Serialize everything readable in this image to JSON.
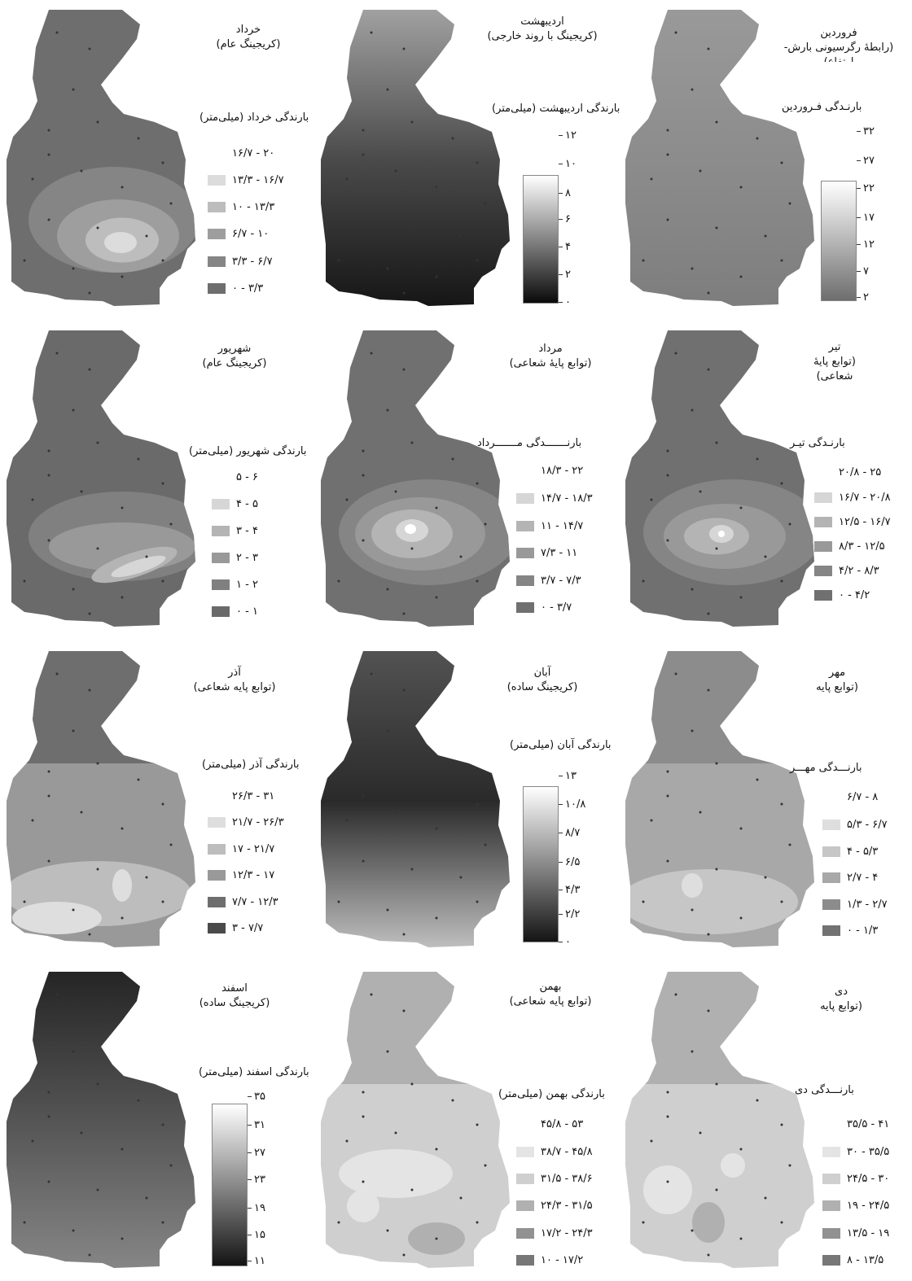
{
  "panels": [
    {
      "key": "khordad",
      "title": "خرداد\n(کریجینگ عام)",
      "legend_title": "بارندگی خرداد (میلی‌متر)",
      "kind": "classes",
      "classes": [
        {
          "label": "۱۶/۷ - ۲۰",
          "color": "none"
        },
        {
          "label": "۱۳/۳ - ۱۶/۷",
          "color": "#dcdcdc"
        },
        {
          "label": "۱۰ - ۱۳/۳",
          "color": "#bdbdbd"
        },
        {
          "label": "۶/۷ - ۱۰",
          "color": "#9e9e9e"
        },
        {
          "label": "۳/۳ - ۶/۷",
          "color": "#858585"
        },
        {
          "label": "۰ - ۳/۳",
          "color": "#6e6e6e"
        }
      ]
    },
    {
      "key": "ordibehesht",
      "title": "اردیبهشت\n(کریجینگ با روند خارجی)",
      "legend_title": "بارندگی اردیبهشت (میلی‌متر)",
      "kind": "ramp",
      "ticks": [
        "۱۲",
        "۱۰",
        "۸",
        "۶",
        "۴",
        "۲",
        "۰"
      ],
      "ramp_colors": [
        "#ffffff",
        "#0a0a0a"
      ]
    },
    {
      "key": "farvardin",
      "title": "فروردین\n(رابطهٔ رگرسیونی بارش-\nارتفاع)",
      "legend_title": "بارنـدگی فـروردین",
      "kind": "ramp",
      "ticks": [
        "۳۲",
        "۲۷",
        "۲۲",
        "۱۷",
        "۱۲",
        "۷",
        "۲"
      ],
      "ramp_colors": [
        "#ffffff",
        "#6e6e6e"
      ]
    },
    {
      "key": "shahrivar",
      "title": "شهریور\n(کریجینگ عام)",
      "legend_title": "بارندگی شهریور (میلی‌متر)",
      "kind": "classes",
      "classes": [
        {
          "label": "۵ - ۶",
          "color": "none"
        },
        {
          "label": "۴ - ۵",
          "color": "#d6d6d6"
        },
        {
          "label": "۳ - ۴",
          "color": "#b4b4b4"
        },
        {
          "label": "۲ - ۳",
          "color": "#999999"
        },
        {
          "label": "۱ - ۲",
          "color": "#808080"
        },
        {
          "label": "۰ - ۱",
          "color": "#6a6a6a"
        }
      ]
    },
    {
      "key": "mordad",
      "title": "مرداد\n(توابع پایهٔ شعاعی)",
      "legend_title": "بارنـــــــدگی مـــــــرداد",
      "kind": "classes",
      "classes": [
        {
          "label": "۱۸/۳ - ۲۲",
          "color": "none"
        },
        {
          "label": "۱۴/۷ - ۱۸/۳",
          "color": "#d6d6d6"
        },
        {
          "label": "۱۱ - ۱۴/۷",
          "color": "#b4b4b4"
        },
        {
          "label": "۷/۳ - ۱۱",
          "color": "#999999"
        },
        {
          "label": "۳/۷ - ۷/۳",
          "color": "#858585"
        },
        {
          "label": "۰ - ۳/۷",
          "color": "#707070"
        }
      ]
    },
    {
      "key": "tir",
      "title": "تیر\n(توابع پایهٔ\nشعاعی)",
      "legend_title": "بارنـدگی تیـر",
      "kind": "classes",
      "classes": [
        {
          "label": "۲۰/۸ - ۲۵",
          "color": "none"
        },
        {
          "label": "۱۶/۷ - ۲۰/۸",
          "color": "#d6d6d6"
        },
        {
          "label": "۱۲/۵ - ۱۶/۷",
          "color": "#b4b4b4"
        },
        {
          "label": "۸/۳ - ۱۲/۵",
          "color": "#999999"
        },
        {
          "label": "۴/۲ - ۸/۳",
          "color": "#858585"
        },
        {
          "label": "۰ - ۴/۲",
          "color": "#707070"
        }
      ]
    },
    {
      "key": "azar",
      "title": "آذر\n(توابع پایه شعاعی)",
      "legend_title": "بارندگی آذر (میلی‌متر)",
      "kind": "classes",
      "classes": [
        {
          "label": "۲۶/۳ - ۳۱",
          "color": "none"
        },
        {
          "label": "۲۱/۷ - ۲۶/۳",
          "color": "#dedede"
        },
        {
          "label": "۱۷ - ۲۱/۷",
          "color": "#bdbdbd"
        },
        {
          "label": "۱۲/۳ - ۱۷",
          "color": "#999999"
        },
        {
          "label": "۷/۷ - ۱۲/۳",
          "color": "#6e6e6e"
        },
        {
          "label": "۳ - ۷/۷",
          "color": "#4a4a4a"
        }
      ]
    },
    {
      "key": "aban",
      "title": "آبان\n(کریجینگ ساده)",
      "legend_title": "بارندگی آبان (میلی‌متر)",
      "kind": "ramp",
      "ticks": [
        "۱۳",
        "۱۰/۸",
        "۸/۷",
        "۶/۵",
        "۴/۳",
        "۲/۲",
        "۰"
      ],
      "ramp_colors": [
        "#ffffff",
        "#141414"
      ]
    },
    {
      "key": "mehr",
      "title": "مهر\n(توابع پایه",
      "legend_title": "بارنـــدگی مهـــر",
      "kind": "classes",
      "classes": [
        {
          "label": "۶/۷ - ۸",
          "color": "none"
        },
        {
          "label": "۵/۳ - ۶/۷",
          "color": "#dedede"
        },
        {
          "label": "۴ - ۵/۳",
          "color": "#c6c6c6"
        },
        {
          "label": "۲/۷ - ۴",
          "color": "#a8a8a8"
        },
        {
          "label": "۱/۳ - ۲/۷",
          "color": "#8c8c8c"
        },
        {
          "label": "۰ - ۱/۳",
          "color": "#727272"
        }
      ]
    },
    {
      "key": "esfand",
      "title": "اسفند\n(کریجینگ ساده)",
      "legend_title": "بارندگی اسفند (میلی‌متر)",
      "kind": "ramp",
      "ticks": [
        "۳۵",
        "۳۱",
        "۲۷",
        "۲۳",
        "۱۹",
        "۱۵",
        "۱۱"
      ],
      "ramp_colors": [
        "#ffffff",
        "#141414"
      ]
    },
    {
      "key": "bahman",
      "title": "بهمن\n(توابع پایه شعاعی)",
      "legend_title": "بارندگی بهمن (میلی‌متر)",
      "kind": "classes",
      "classes": [
        {
          "label": "۴۵/۸ - ۵۳",
          "color": "none"
        },
        {
          "label": "۳۸/۷ - ۴۵/۸",
          "color": "#e4e4e4"
        },
        {
          "label": "۳۱/۵ - ۳۸/۶",
          "color": "#cfcfcf"
        },
        {
          "label": "۲۴/۳ - ۳۱/۵",
          "color": "#b0b0b0"
        },
        {
          "label": "۱۷/۲ - ۲۴/۳",
          "color": "#919191"
        },
        {
          "label": "۱۰ - ۱۷/۲",
          "color": "#777777"
        }
      ]
    },
    {
      "key": "dey",
      "title": "دی\n(توابع  پایه",
      "legend_title": "بارنـــدگی دی",
      "kind": "classes",
      "classes": [
        {
          "label": "۳۵/۵ - ۴۱",
          "color": "none"
        },
        {
          "label": "۳۰ - ۳۵/۵",
          "color": "#e4e4e4"
        },
        {
          "label": "۲۴/۵ - ۳۰",
          "color": "#cfcfcf"
        },
        {
          "label": "۱۹ - ۲۴/۵",
          "color": "#b0b0b0"
        },
        {
          "label": "۱۳/۵ - ۱۹",
          "color": "#919191"
        },
        {
          "label": "۸ - ۱۳/۵",
          "color": "#777777"
        }
      ]
    }
  ]
}
